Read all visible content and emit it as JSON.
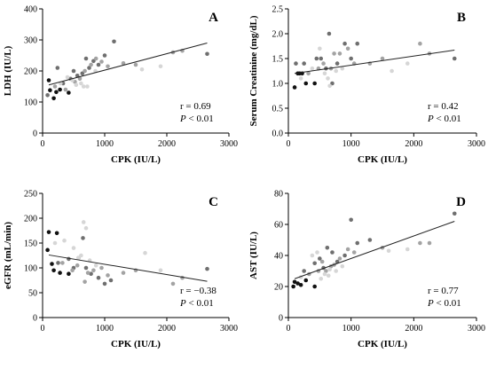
{
  "colors": {
    "black": "#111111",
    "dark": "#6f6f6f",
    "mid": "#a3a3a3",
    "light": "#d6d6d6"
  },
  "chart_data": [
    {
      "type": "scatter",
      "letter": "A",
      "xlabel": "CPK (IU/L)",
      "ylabel": "LDH (IU/L)",
      "xlim": [
        0,
        3000
      ],
      "ylim": [
        0,
        400
      ],
      "xticks": [
        0,
        1000,
        2000,
        3000
      ],
      "yticks": [
        0,
        100,
        200,
        300,
        400
      ],
      "stat_r": "r = 0.69",
      "stat_p_symbol": "P",
      "stat_p_rest": " < 0.01",
      "stat_position": "bottom-right",
      "trend": {
        "x": [
          100,
          2650
        ],
        "y": [
          155,
          290
        ]
      },
      "points": [
        {
          "x": 100,
          "y": 170,
          "c": "black"
        },
        {
          "x": 120,
          "y": 138,
          "c": "black"
        },
        {
          "x": 180,
          "y": 112,
          "c": "black"
        },
        {
          "x": 220,
          "y": 132,
          "c": "black"
        },
        {
          "x": 280,
          "y": 140,
          "c": "black"
        },
        {
          "x": 420,
          "y": 130,
          "c": "black"
        },
        {
          "x": 80,
          "y": 122,
          "c": "dark"
        },
        {
          "x": 240,
          "y": 210,
          "c": "dark"
        },
        {
          "x": 330,
          "y": 160,
          "c": "dark"
        },
        {
          "x": 450,
          "y": 175,
          "c": "dark"
        },
        {
          "x": 500,
          "y": 200,
          "c": "dark"
        },
        {
          "x": 560,
          "y": 185,
          "c": "dark"
        },
        {
          "x": 640,
          "y": 192,
          "c": "dark"
        },
        {
          "x": 700,
          "y": 240,
          "c": "dark"
        },
        {
          "x": 750,
          "y": 210,
          "c": "dark"
        },
        {
          "x": 820,
          "y": 232,
          "c": "dark"
        },
        {
          "x": 900,
          "y": 220,
          "c": "dark"
        },
        {
          "x": 1000,
          "y": 250,
          "c": "dark"
        },
        {
          "x": 1150,
          "y": 295,
          "c": "dark"
        },
        {
          "x": 2650,
          "y": 255,
          "c": "dark"
        },
        {
          "x": 200,
          "y": 150,
          "c": "mid"
        },
        {
          "x": 370,
          "y": 140,
          "c": "mid"
        },
        {
          "x": 520,
          "y": 165,
          "c": "mid"
        },
        {
          "x": 600,
          "y": 175,
          "c": "mid"
        },
        {
          "x": 680,
          "y": 200,
          "c": "mid"
        },
        {
          "x": 780,
          "y": 220,
          "c": "mid"
        },
        {
          "x": 860,
          "y": 240,
          "c": "mid"
        },
        {
          "x": 950,
          "y": 230,
          "c": "mid"
        },
        {
          "x": 1050,
          "y": 215,
          "c": "mid"
        },
        {
          "x": 1300,
          "y": 225,
          "c": "mid"
        },
        {
          "x": 1500,
          "y": 220,
          "c": "mid"
        },
        {
          "x": 2100,
          "y": 260,
          "c": "mid"
        },
        {
          "x": 2250,
          "y": 265,
          "c": "mid"
        },
        {
          "x": 290,
          "y": 160,
          "c": "light"
        },
        {
          "x": 400,
          "y": 180,
          "c": "light"
        },
        {
          "x": 480,
          "y": 170,
          "c": "light"
        },
        {
          "x": 540,
          "y": 155,
          "c": "light"
        },
        {
          "x": 620,
          "y": 160,
          "c": "light"
        },
        {
          "x": 660,
          "y": 150,
          "c": "light"
        },
        {
          "x": 720,
          "y": 150,
          "c": "light"
        },
        {
          "x": 850,
          "y": 200,
          "c": "light"
        },
        {
          "x": 1600,
          "y": 205,
          "c": "light"
        },
        {
          "x": 1900,
          "y": 215,
          "c": "light"
        }
      ]
    },
    {
      "type": "scatter",
      "letter": "B",
      "xlabel": "CPK (IU/L)",
      "ylabel": "Serum Creatinine (mg/dL)",
      "xlim": [
        0,
        3000
      ],
      "ylim": [
        0.0,
        2.5
      ],
      "xticks": [
        0,
        1000,
        2000,
        3000
      ],
      "yticks": [
        0.0,
        0.5,
        1.0,
        1.5,
        2.0,
        2.5
      ],
      "ytick_decimals": 1,
      "stat_r": "r = 0.42",
      "stat_p_symbol": "P",
      "stat_p_rest": " < 0.01",
      "stat_position": "bottom-right",
      "trend": {
        "x": [
          100,
          2650
        ],
        "y": [
          1.2,
          1.67
        ]
      },
      "points": [
        {
          "x": 100,
          "y": 0.92,
          "c": "black"
        },
        {
          "x": 150,
          "y": 1.2,
          "c": "black"
        },
        {
          "x": 180,
          "y": 1.2,
          "c": "black"
        },
        {
          "x": 220,
          "y": 1.2,
          "c": "black"
        },
        {
          "x": 280,
          "y": 1.0,
          "c": "black"
        },
        {
          "x": 420,
          "y": 1.0,
          "c": "black"
        },
        {
          "x": 120,
          "y": 1.4,
          "c": "dark"
        },
        {
          "x": 250,
          "y": 1.4,
          "c": "dark"
        },
        {
          "x": 450,
          "y": 1.5,
          "c": "dark"
        },
        {
          "x": 520,
          "y": 1.5,
          "c": "dark"
        },
        {
          "x": 600,
          "y": 1.3,
          "c": "dark"
        },
        {
          "x": 650,
          "y": 2.0,
          "c": "dark"
        },
        {
          "x": 700,
          "y": 1.0,
          "c": "dark"
        },
        {
          "x": 780,
          "y": 1.4,
          "c": "dark"
        },
        {
          "x": 900,
          "y": 1.8,
          "c": "dark"
        },
        {
          "x": 1000,
          "y": 1.5,
          "c": "dark"
        },
        {
          "x": 1100,
          "y": 1.8,
          "c": "dark"
        },
        {
          "x": 2650,
          "y": 1.5,
          "c": "dark"
        },
        {
          "x": 320,
          "y": 1.2,
          "c": "mid"
        },
        {
          "x": 480,
          "y": 1.3,
          "c": "mid"
        },
        {
          "x": 560,
          "y": 1.4,
          "c": "mid"
        },
        {
          "x": 680,
          "y": 1.3,
          "c": "mid"
        },
        {
          "x": 730,
          "y": 1.6,
          "c": "mid"
        },
        {
          "x": 820,
          "y": 1.6,
          "c": "mid"
        },
        {
          "x": 950,
          "y": 1.7,
          "c": "mid"
        },
        {
          "x": 1050,
          "y": 1.4,
          "c": "mid"
        },
        {
          "x": 1300,
          "y": 1.4,
          "c": "mid"
        },
        {
          "x": 1500,
          "y": 1.5,
          "c": "mid"
        },
        {
          "x": 2100,
          "y": 1.8,
          "c": "mid"
        },
        {
          "x": 2250,
          "y": 1.6,
          "c": "mid"
        },
        {
          "x": 200,
          "y": 1.1,
          "c": "light"
        },
        {
          "x": 380,
          "y": 1.3,
          "c": "light"
        },
        {
          "x": 500,
          "y": 1.7,
          "c": "light"
        },
        {
          "x": 580,
          "y": 1.2,
          "c": "light"
        },
        {
          "x": 630,
          "y": 1.1,
          "c": "light"
        },
        {
          "x": 660,
          "y": 0.95,
          "c": "light"
        },
        {
          "x": 760,
          "y": 1.25,
          "c": "light"
        },
        {
          "x": 860,
          "y": 1.3,
          "c": "light"
        },
        {
          "x": 1650,
          "y": 1.25,
          "c": "light"
        },
        {
          "x": 1900,
          "y": 1.4,
          "c": "light"
        }
      ]
    },
    {
      "type": "scatter",
      "letter": "C",
      "xlabel": "CPK (IU/L)",
      "ylabel": "eGFR (mL/min)",
      "xlim": [
        0,
        3000
      ],
      "ylim": [
        0,
        250
      ],
      "xticks": [
        0,
        1000,
        2000,
        3000
      ],
      "yticks": [
        0,
        50,
        100,
        150,
        200,
        250
      ],
      "stat_r": "r = −0.38",
      "stat_p_symbol": "P",
      "stat_p_rest": " < 0.01",
      "stat_position": "bottom-right",
      "trend": {
        "x": [
          100,
          2650
        ],
        "y": [
          126,
          73
        ]
      },
      "points": [
        {
          "x": 80,
          "y": 136,
          "c": "black"
        },
        {
          "x": 100,
          "y": 172,
          "c": "black"
        },
        {
          "x": 150,
          "y": 108,
          "c": "black"
        },
        {
          "x": 180,
          "y": 95,
          "c": "black"
        },
        {
          "x": 230,
          "y": 170,
          "c": "black"
        },
        {
          "x": 280,
          "y": 90,
          "c": "black"
        },
        {
          "x": 420,
          "y": 88,
          "c": "black"
        },
        {
          "x": 250,
          "y": 110,
          "c": "dark"
        },
        {
          "x": 420,
          "y": 118,
          "c": "dark"
        },
        {
          "x": 500,
          "y": 100,
          "c": "dark"
        },
        {
          "x": 580,
          "y": 120,
          "c": "dark"
        },
        {
          "x": 650,
          "y": 160,
          "c": "dark"
        },
        {
          "x": 700,
          "y": 100,
          "c": "dark"
        },
        {
          "x": 780,
          "y": 88,
          "c": "dark"
        },
        {
          "x": 900,
          "y": 80,
          "c": "dark"
        },
        {
          "x": 1000,
          "y": 68,
          "c": "dark"
        },
        {
          "x": 1100,
          "y": 75,
          "c": "dark"
        },
        {
          "x": 2650,
          "y": 98,
          "c": "dark"
        },
        {
          "x": 320,
          "y": 110,
          "c": "mid"
        },
        {
          "x": 480,
          "y": 95,
          "c": "mid"
        },
        {
          "x": 560,
          "y": 105,
          "c": "mid"
        },
        {
          "x": 680,
          "y": 72,
          "c": "mid"
        },
        {
          "x": 730,
          "y": 90,
          "c": "mid"
        },
        {
          "x": 820,
          "y": 95,
          "c": "mid"
        },
        {
          "x": 950,
          "y": 100,
          "c": "mid"
        },
        {
          "x": 1050,
          "y": 85,
          "c": "mid"
        },
        {
          "x": 1300,
          "y": 90,
          "c": "mid"
        },
        {
          "x": 1500,
          "y": 95,
          "c": "mid"
        },
        {
          "x": 2100,
          "y": 68,
          "c": "mid"
        },
        {
          "x": 2250,
          "y": 80,
          "c": "mid"
        },
        {
          "x": 200,
          "y": 150,
          "c": "light"
        },
        {
          "x": 350,
          "y": 155,
          "c": "light"
        },
        {
          "x": 500,
          "y": 140,
          "c": "light"
        },
        {
          "x": 580,
          "y": 120,
          "c": "light"
        },
        {
          "x": 620,
          "y": 125,
          "c": "light"
        },
        {
          "x": 660,
          "y": 192,
          "c": "light"
        },
        {
          "x": 700,
          "y": 180,
          "c": "light"
        },
        {
          "x": 760,
          "y": 115,
          "c": "light"
        },
        {
          "x": 860,
          "y": 105,
          "c": "light"
        },
        {
          "x": 1650,
          "y": 130,
          "c": "light"
        },
        {
          "x": 1900,
          "y": 95,
          "c": "light"
        }
      ]
    },
    {
      "type": "scatter",
      "letter": "D",
      "xlabel": "CPK (IU/L)",
      "ylabel": "AST (IU/L)",
      "xlim": [
        0,
        3000
      ],
      "ylim": [
        0,
        80
      ],
      "xticks": [
        0,
        1000,
        2000,
        3000
      ],
      "yticks": [
        0,
        20,
        40,
        60,
        80
      ],
      "stat_r": "r = 0.77",
      "stat_p_symbol": "P",
      "stat_p_rest": " < 0.01",
      "stat_position": "bottom-right",
      "trend": {
        "x": [
          100,
          2650
        ],
        "y": [
          25,
          62
        ]
      },
      "points": [
        {
          "x": 80,
          "y": 20,
          "c": "black"
        },
        {
          "x": 100,
          "y": 23,
          "c": "black"
        },
        {
          "x": 150,
          "y": 22,
          "c": "black"
        },
        {
          "x": 200,
          "y": 21,
          "c": "black"
        },
        {
          "x": 280,
          "y": 24,
          "c": "black"
        },
        {
          "x": 420,
          "y": 20,
          "c": "black"
        },
        {
          "x": 250,
          "y": 30,
          "c": "dark"
        },
        {
          "x": 420,
          "y": 35,
          "c": "dark"
        },
        {
          "x": 500,
          "y": 38,
          "c": "dark"
        },
        {
          "x": 560,
          "y": 32,
          "c": "dark"
        },
        {
          "x": 620,
          "y": 45,
          "c": "dark"
        },
        {
          "x": 700,
          "y": 42,
          "c": "dark"
        },
        {
          "x": 780,
          "y": 36,
          "c": "dark"
        },
        {
          "x": 900,
          "y": 40,
          "c": "dark"
        },
        {
          "x": 1000,
          "y": 63,
          "c": "dark"
        },
        {
          "x": 1100,
          "y": 48,
          "c": "dark"
        },
        {
          "x": 1300,
          "y": 50,
          "c": "dark"
        },
        {
          "x": 2650,
          "y": 67,
          "c": "dark"
        },
        {
          "x": 330,
          "y": 28,
          "c": "mid"
        },
        {
          "x": 480,
          "y": 30,
          "c": "mid"
        },
        {
          "x": 540,
          "y": 36,
          "c": "mid"
        },
        {
          "x": 600,
          "y": 30,
          "c": "mid"
        },
        {
          "x": 680,
          "y": 33,
          "c": "mid"
        },
        {
          "x": 730,
          "y": 34,
          "c": "mid"
        },
        {
          "x": 820,
          "y": 38,
          "c": "mid"
        },
        {
          "x": 950,
          "y": 44,
          "c": "mid"
        },
        {
          "x": 1050,
          "y": 42,
          "c": "mid"
        },
        {
          "x": 1500,
          "y": 45,
          "c": "mid"
        },
        {
          "x": 2100,
          "y": 48,
          "c": "mid"
        },
        {
          "x": 2250,
          "y": 48,
          "c": "mid"
        },
        {
          "x": 200,
          "y": 26,
          "c": "light"
        },
        {
          "x": 380,
          "y": 40,
          "c": "light"
        },
        {
          "x": 460,
          "y": 42,
          "c": "light"
        },
        {
          "x": 520,
          "y": 25,
          "c": "light"
        },
        {
          "x": 580,
          "y": 28,
          "c": "light"
        },
        {
          "x": 640,
          "y": 27,
          "c": "light"
        },
        {
          "x": 660,
          "y": 31,
          "c": "light"
        },
        {
          "x": 760,
          "y": 30,
          "c": "light"
        },
        {
          "x": 860,
          "y": 33,
          "c": "light"
        },
        {
          "x": 1600,
          "y": 43,
          "c": "light"
        },
        {
          "x": 1900,
          "y": 44,
          "c": "light"
        }
      ]
    }
  ]
}
